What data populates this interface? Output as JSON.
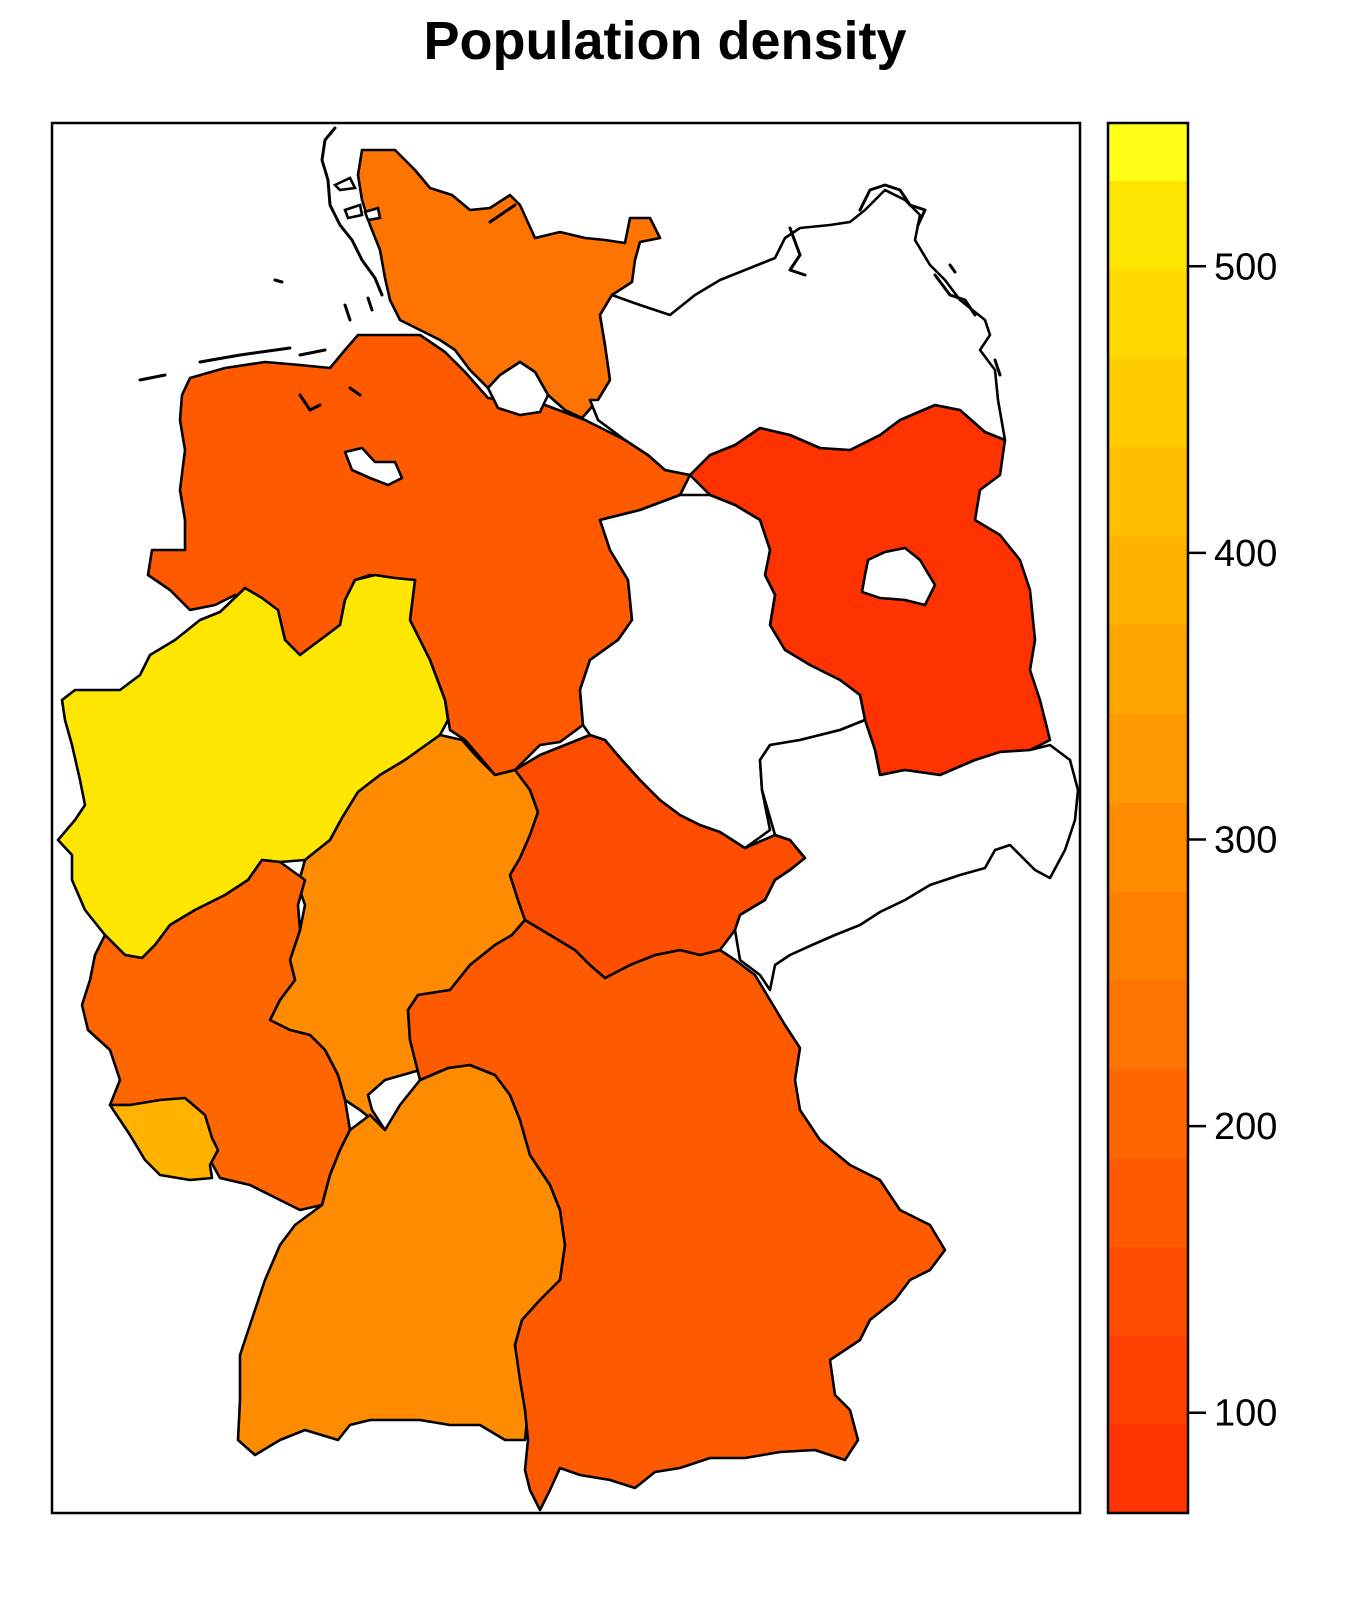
{
  "chart_data": {
    "type": "choropleth",
    "title": "Population density",
    "legend": {
      "position": "right",
      "range": [
        65,
        550
      ],
      "ticks": [
        100,
        200,
        300,
        400,
        500
      ],
      "tick_labels": [
        "100",
        "200",
        "300",
        "400",
        "500"
      ],
      "bins": [
        {
          "from": 65,
          "to": 96,
          "color": "#FF3300"
        },
        {
          "from": 96,
          "to": 127,
          "color": "#FF4000"
        },
        {
          "from": 127,
          "to": 158,
          "color": "#FF4D00"
        },
        {
          "from": 158,
          "to": 189,
          "color": "#FF5A00"
        },
        {
          "from": 189,
          "to": 220,
          "color": "#FF6600"
        },
        {
          "from": 220,
          "to": 251,
          "color": "#FF7300"
        },
        {
          "from": 251,
          "to": 282,
          "color": "#FF8000"
        },
        {
          "from": 282,
          "to": 313,
          "color": "#FF8C00"
        },
        {
          "from": 313,
          "to": 344,
          "color": "#FF9900"
        },
        {
          "from": 344,
          "to": 375,
          "color": "#FFA600"
        },
        {
          "from": 375,
          "to": 406,
          "color": "#FFB300"
        },
        {
          "from": 406,
          "to": 437,
          "color": "#FFBF00"
        },
        {
          "from": 437,
          "to": 468,
          "color": "#FFCC00"
        },
        {
          "from": 468,
          "to": 499,
          "color": "#FFD900"
        },
        {
          "from": 499,
          "to": 530,
          "color": "#FFE600"
        },
        {
          "from": 530,
          "to": 550,
          "color": "#FFFF1A"
        }
      ]
    },
    "regions": [
      {
        "id": "schleswig-holstein",
        "value": 225
      },
      {
        "id": "niedersachsen",
        "value": 165
      },
      {
        "id": "nordrhein-westfalen",
        "value": 525
      },
      {
        "id": "hessen",
        "value": 290
      },
      {
        "id": "rheinland-pfalz",
        "value": 200
      },
      {
        "id": "saarland",
        "value": 390
      },
      {
        "id": "baden-wuerttemberg",
        "value": 300
      },
      {
        "id": "bayern",
        "value": 175
      },
      {
        "id": "thueringen",
        "value": 135
      },
      {
        "id": "brandenburg",
        "value": 85
      },
      {
        "id": "hamburg",
        "value": null
      },
      {
        "id": "bremen",
        "value": null
      },
      {
        "id": "berlin",
        "value": null
      },
      {
        "id": "mecklenburg-vorpommern",
        "value": null
      },
      {
        "id": "sachsen-anhalt",
        "value": null
      },
      {
        "id": "sachsen",
        "value": null
      }
    ]
  }
}
